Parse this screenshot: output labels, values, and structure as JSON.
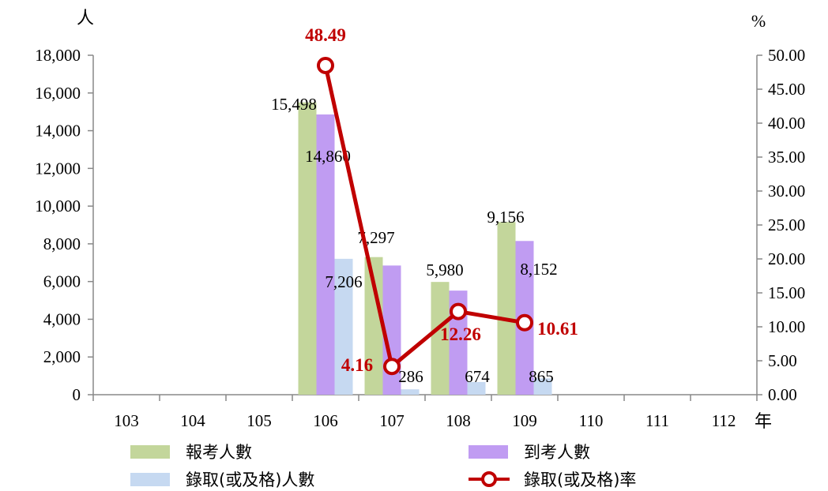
{
  "chart_data": {
    "type": "bar",
    "title": "",
    "categories": [
      "103",
      "104",
      "105",
      "106",
      "107",
      "108",
      "109",
      "110",
      "111",
      "112"
    ],
    "x_unit": "年",
    "y_left_unit": "人",
    "y_right_unit": "%",
    "ylim_left": [
      0,
      18000
    ],
    "ylim_right": [
      0,
      50
    ],
    "y_left_ticks": [
      "0",
      "2,000",
      "4,000",
      "6,000",
      "8,000",
      "10,000",
      "12,000",
      "14,000",
      "16,000",
      "18,000"
    ],
    "y_right_ticks": [
      "0.00",
      "5.00",
      "10.00",
      "15.00",
      "20.00",
      "25.00",
      "30.00",
      "35.00",
      "40.00",
      "45.00",
      "50.00"
    ],
    "legend_position": "bottom",
    "grid": false,
    "series": [
      {
        "name": "報考人數",
        "type": "bar",
        "axis": "left",
        "color": "#c3d69b",
        "values": [
          null,
          null,
          null,
          15498,
          7297,
          5980,
          9156,
          null,
          null,
          null
        ],
        "labels": [
          null,
          null,
          null,
          "15,498",
          "7,297",
          "5,980",
          "9,156",
          null,
          null,
          null
        ]
      },
      {
        "name": "到考人數",
        "type": "bar",
        "axis": "left",
        "color": "#c09cf2",
        "values": [
          null,
          null,
          null,
          14860,
          6850,
          5520,
          8152,
          null,
          null,
          null
        ],
        "labels": [
          null,
          null,
          null,
          "14,860",
          null,
          null,
          "8,152",
          null,
          null,
          null
        ]
      },
      {
        "name": "錄取(或及格)人數",
        "type": "bar",
        "axis": "left",
        "color": "#c6d9f1",
        "values": [
          null,
          null,
          null,
          7206,
          286,
          674,
          865,
          null,
          null,
          null
        ],
        "labels": [
          null,
          null,
          null,
          "7,206",
          "286",
          "674",
          "865",
          null,
          null,
          null
        ]
      },
      {
        "name": "錄取(或及格)率",
        "type": "line",
        "axis": "right",
        "color": "#c00000",
        "values": [
          null,
          null,
          null,
          48.49,
          4.16,
          12.26,
          10.61,
          null,
          null,
          null
        ],
        "labels": [
          null,
          null,
          null,
          "48.49",
          "4.16",
          "12.26",
          "10.61",
          null,
          null,
          null
        ]
      }
    ]
  }
}
